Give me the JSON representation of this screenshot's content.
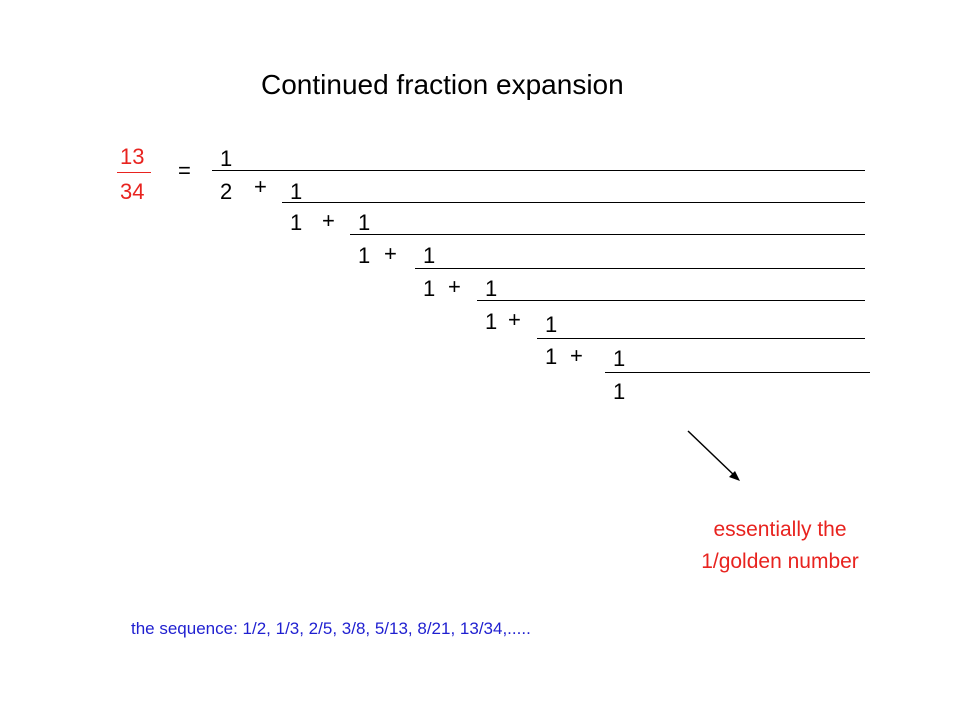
{
  "title": "Continued fraction expansion",
  "fraction": {
    "numerator": "13",
    "denominator": "34",
    "equals": "="
  },
  "expansion": {
    "numerators": [
      "1",
      "1",
      "1",
      "1",
      "1",
      "1",
      "1"
    ],
    "denominators": [
      "2",
      "1",
      "1",
      "1",
      "1",
      "1",
      "1"
    ],
    "plus": "+"
  },
  "note": {
    "line1": "essentially the",
    "line2": "1/golden number"
  },
  "sequence": "the sequence: 1/2, 1/3, 2/5, 3/8, 5/13, 8/21, 13/34,.....",
  "colors": {
    "accent_red": "#e8231f",
    "sequence_blue": "#1f1fd0",
    "text": "#000000"
  }
}
